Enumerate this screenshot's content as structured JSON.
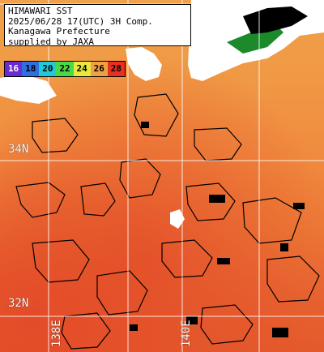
{
  "title_box": {
    "lines": [
      "HIMAWARI SST",
      "2025/06/28 17(UTC) 3H Comp.",
      "Kanagawa Prefecture",
      "supplied by JAXA"
    ]
  },
  "legend": {
    "items": [
      {
        "label": "16",
        "color": "#6a2bd0"
      },
      {
        "label": "18",
        "color": "#2f6fe0"
      },
      {
        "label": "20",
        "color": "#20c8d8"
      },
      {
        "label": "22",
        "color": "#48d848"
      },
      {
        "label": "24",
        "color": "#e8e840"
      },
      {
        "label": "26",
        "color": "#f0a040"
      },
      {
        "label": "28",
        "color": "#e83020"
      }
    ]
  },
  "grid_labels": {
    "lat_34": "34N",
    "lat_32": "32N",
    "lon_138": "138E",
    "lon_140": "140E"
  },
  "colors": {
    "land": "#ffffff",
    "cloud_mask": "#000000",
    "warm_sea": "#e45a2c",
    "mid_sea": "#f09a45",
    "vegetation_patch": "#1c8a2a"
  }
}
